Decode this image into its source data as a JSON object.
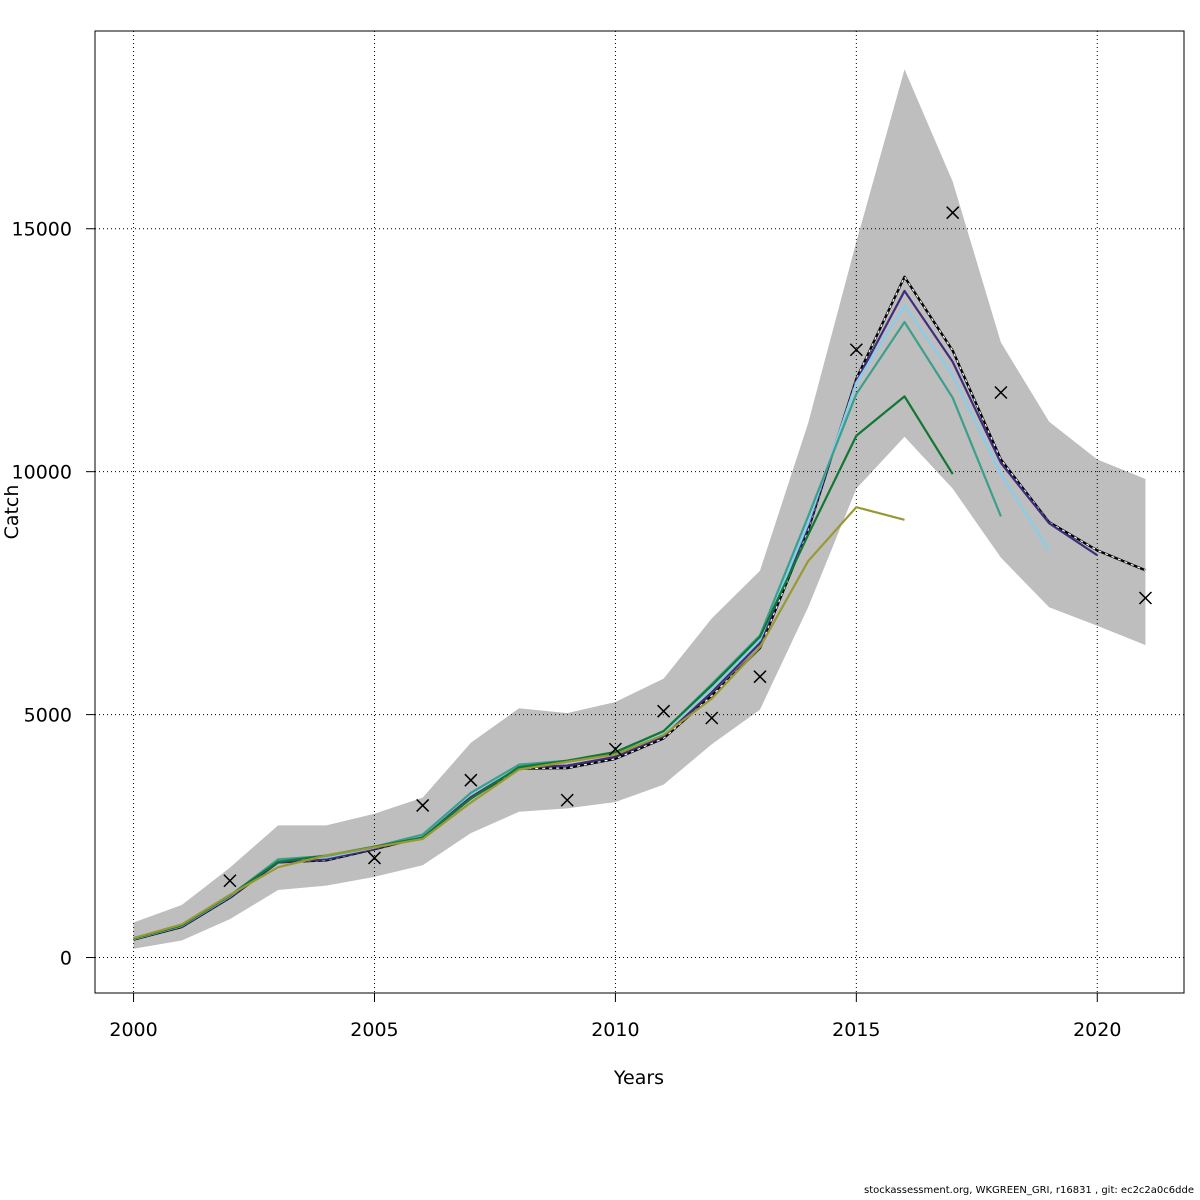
{
  "chart_data": {
    "type": "line",
    "xlabel": "Years",
    "ylabel": "Catch",
    "xlim": [
      1999.2,
      2021.8
    ],
    "ylim": [
      -730,
      19070
    ],
    "x_ticks": [
      2000,
      2005,
      2010,
      2015,
      2020
    ],
    "y_ticks": [
      0,
      5000,
      10000,
      15000
    ],
    "grid": true,
    "band": {
      "color": "#bebebe",
      "x": [
        2000,
        2001,
        2002,
        2003,
        2004,
        2005,
        2006,
        2007,
        2008,
        2009,
        2010,
        2011,
        2012,
        2013,
        2014,
        2015,
        2016,
        2017,
        2018,
        2019,
        2020,
        2021
      ],
      "upper": [
        720,
        1080,
        1850,
        2720,
        2720,
        2960,
        3290,
        4420,
        5130,
        5030,
        5260,
        5740,
        6980,
        7960,
        11000,
        14730,
        18280,
        15970,
        12660,
        11030,
        10250,
        9850
      ],
      "lower": [
        180,
        350,
        790,
        1390,
        1480,
        1660,
        1900,
        2560,
        3000,
        3070,
        3200,
        3560,
        4390,
        5100,
        7210,
        9650,
        10720,
        9650,
        8230,
        7210,
        6830,
        6430
      ]
    },
    "series": [
      {
        "color": "#000000",
        "dashed": true,
        "x": [
          2000,
          2001,
          2002,
          2003,
          2004,
          2005,
          2006,
          2007,
          2008,
          2009,
          2010,
          2011,
          2012,
          2013,
          2014,
          2015,
          2016,
          2017,
          2018,
          2019,
          2020,
          2021
        ],
        "y": [
          370,
          630,
          1230,
          1960,
          2000,
          2230,
          2480,
          3280,
          3890,
          3900,
          4090,
          4510,
          5390,
          6370,
          8800,
          11910,
          14010,
          12490,
          10250,
          8960,
          8380,
          7970
        ]
      },
      {
        "color": "#3e2d7e",
        "x": [
          2000,
          2001,
          2002,
          2003,
          2004,
          2005,
          2006,
          2007,
          2008,
          2009,
          2010,
          2011,
          2012,
          2013,
          2014,
          2015,
          2016,
          2017,
          2018,
          2019,
          2020
        ],
        "y": [
          380,
          640,
          1240,
          1960,
          2020,
          2240,
          2500,
          3300,
          3910,
          3950,
          4130,
          4550,
          5460,
          6470,
          8870,
          11860,
          13720,
          12260,
          10180,
          8940,
          8280
        ]
      },
      {
        "color": "#87ceeb",
        "x": [
          2000,
          2001,
          2002,
          2003,
          2004,
          2005,
          2006,
          2007,
          2008,
          2009,
          2010,
          2011,
          2012,
          2013,
          2014,
          2015,
          2016,
          2017,
          2018,
          2019
        ],
        "y": [
          380,
          650,
          1260,
          2000,
          2060,
          2260,
          2520,
          3370,
          3950,
          4020,
          4190,
          4640,
          5550,
          6540,
          8940,
          11830,
          13420,
          11980,
          9950,
          8380
        ]
      },
      {
        "color": "#3aa08c",
        "x": [
          2000,
          2001,
          2002,
          2003,
          2004,
          2005,
          2006,
          2007,
          2008,
          2009,
          2010,
          2011,
          2012,
          2013,
          2014,
          2015,
          2016,
          2017,
          2018
        ],
        "y": [
          390,
          660,
          1270,
          2020,
          2090,
          2280,
          2530,
          3390,
          3970,
          4050,
          4220,
          4660,
          5630,
          6630,
          9080,
          11600,
          13080,
          11520,
          9080
        ]
      },
      {
        "color": "#117733",
        "x": [
          2000,
          2001,
          2002,
          2003,
          2004,
          2005,
          2006,
          2007,
          2008,
          2009,
          2010,
          2011,
          2012,
          2013,
          2014,
          2015,
          2016,
          2017
        ],
        "y": [
          390,
          660,
          1280,
          1970,
          2100,
          2280,
          2470,
          3270,
          3920,
          4050,
          4230,
          4660,
          5600,
          6600,
          8700,
          10740,
          11550,
          9950
        ]
      },
      {
        "color": "#999933",
        "x": [
          2000,
          2001,
          2002,
          2003,
          2004,
          2005,
          2006,
          2007,
          2008,
          2009,
          2010,
          2011,
          2012,
          2013,
          2014,
          2015,
          2016
        ],
        "y": [
          400,
          680,
          1290,
          1860,
          2100,
          2270,
          2440,
          3190,
          3870,
          4030,
          4180,
          4580,
          5330,
          6390,
          8160,
          9270,
          9010
        ]
      }
    ],
    "observed": {
      "marker": "x",
      "x": [
        2002,
        2005,
        2006,
        2007,
        2009,
        2010,
        2011,
        2012,
        2013,
        2015,
        2017,
        2018,
        2021
      ],
      "y": [
        1580,
        2050,
        3130,
        3650,
        3240,
        4290,
        5070,
        4930,
        5780,
        12510,
        15330,
        11630,
        7400
      ]
    }
  },
  "footer": "stockassessment.org, WKGREEN_GRI, r16831 , git: ec2c2a0c6dde"
}
